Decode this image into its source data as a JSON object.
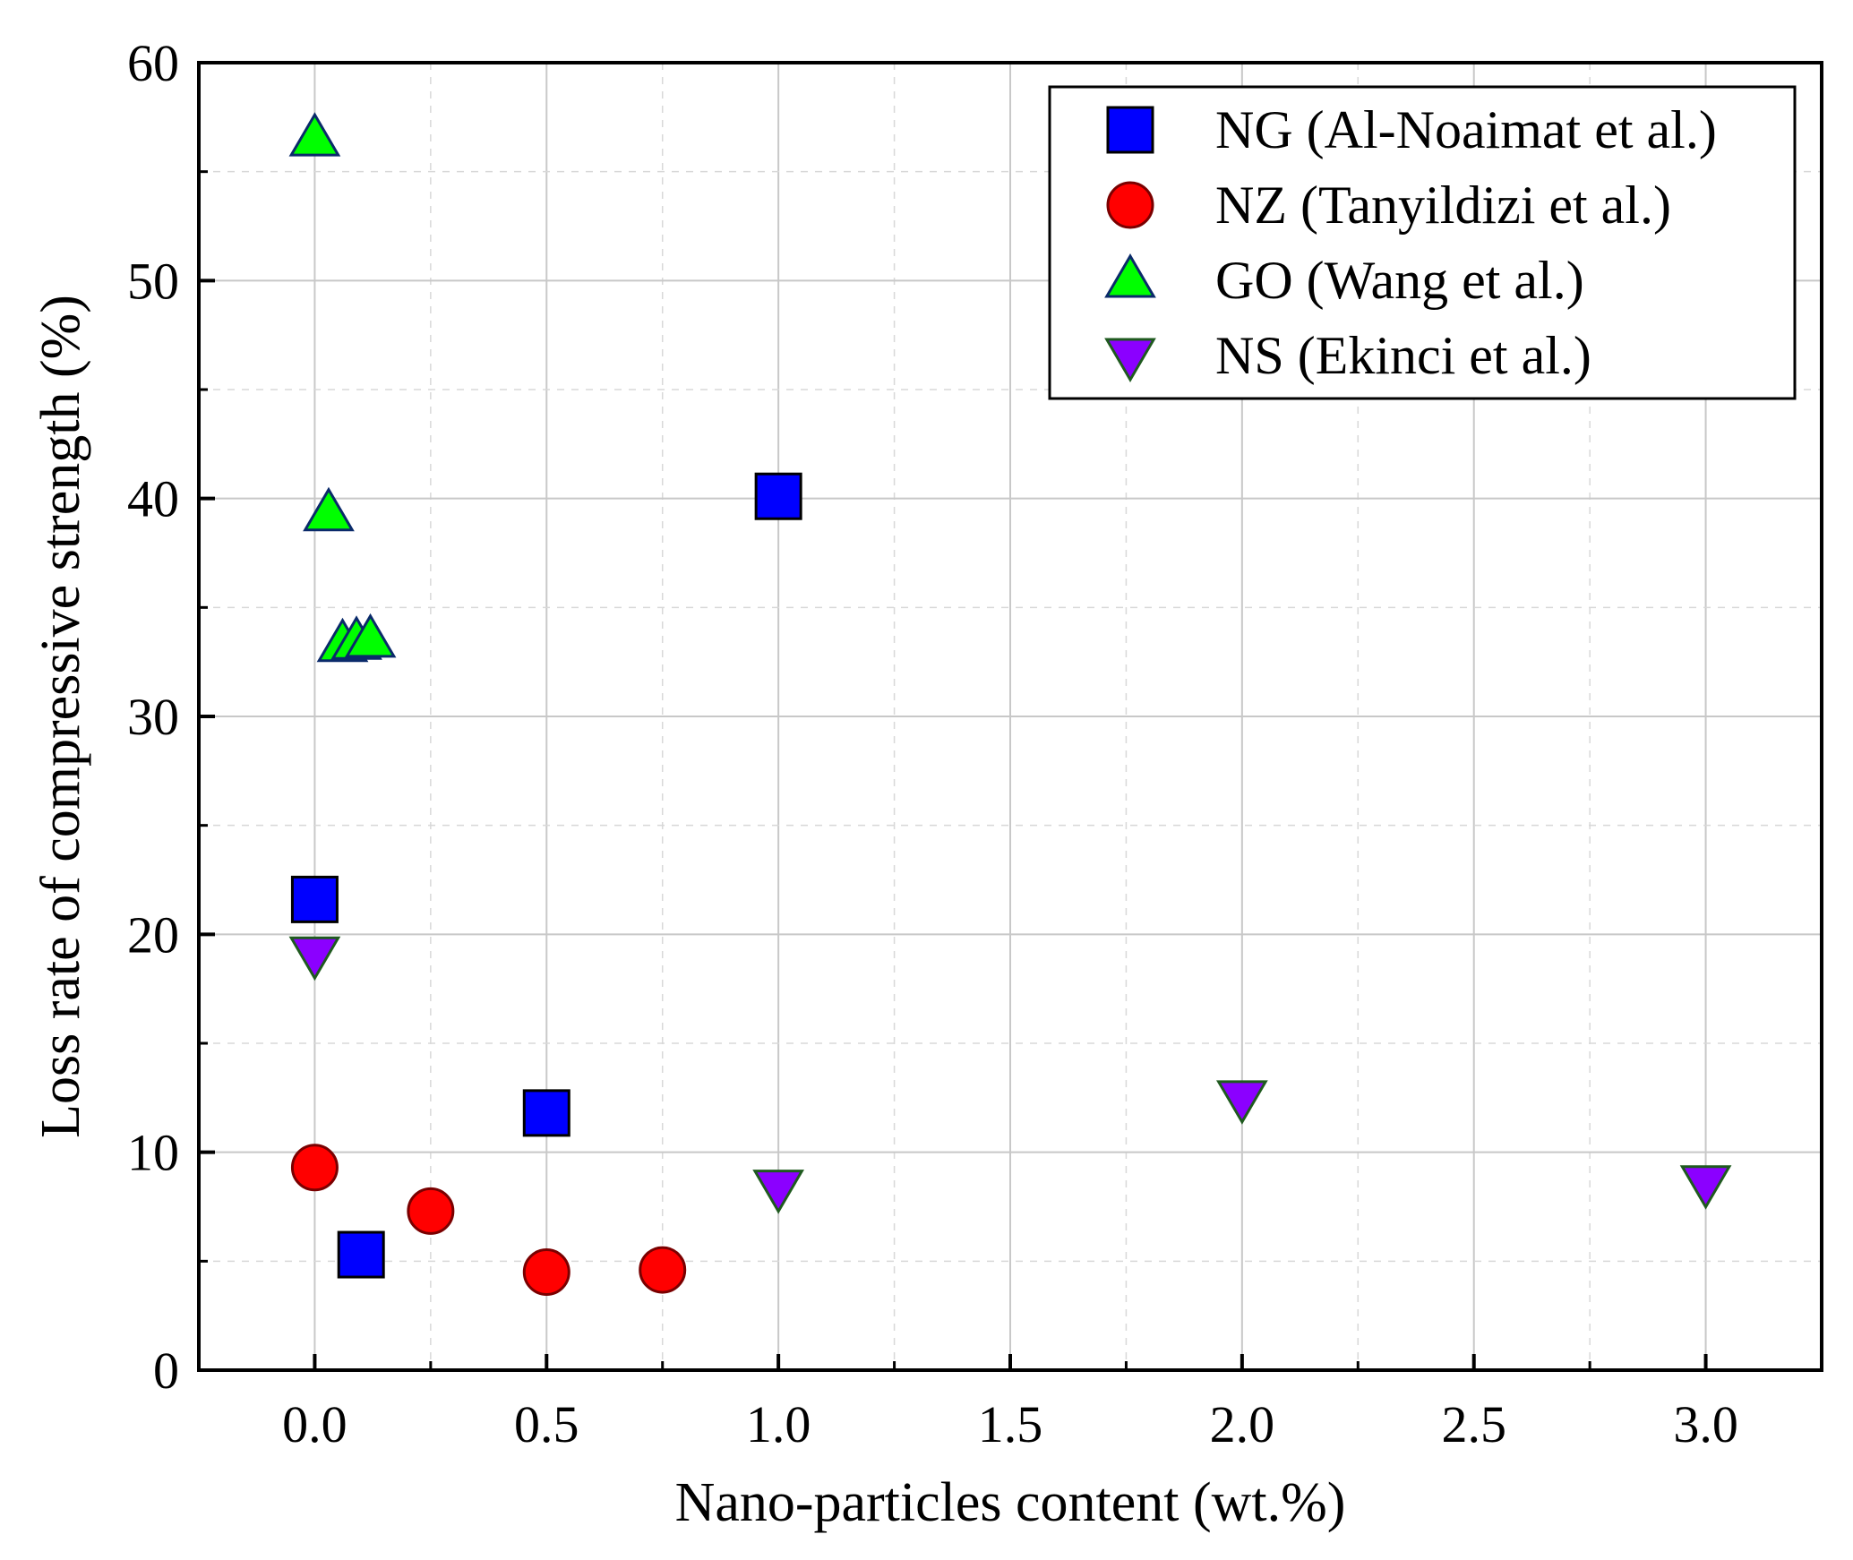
{
  "chart_data": {
    "type": "scatter",
    "title": "",
    "xlabel": "Nano-particles content (wt.%)",
    "ylabel": "Loss rate of compressive strength (%)",
    "xlim": [
      -0.25,
      3.25
    ],
    "ylim": [
      0,
      60
    ],
    "xticks": [
      "0.0",
      "0.5",
      "1.0",
      "1.5",
      "2.0",
      "2.5",
      "3.0"
    ],
    "xtick_values": [
      0,
      0.5,
      1.0,
      1.5,
      2.0,
      2.5,
      3.0
    ],
    "yticks": [
      "0",
      "10",
      "20",
      "30",
      "40",
      "50",
      "60"
    ],
    "ytick_values": [
      0,
      10,
      20,
      30,
      40,
      50,
      60
    ],
    "grid": true,
    "legend_position": "top-right",
    "series": [
      {
        "name": "NG (Al-Noaimat et al.)",
        "marker": "square",
        "color": "#0000ff",
        "points": [
          {
            "x": 0.0,
            "y": 21.6
          },
          {
            "x": 0.1,
            "y": 5.3
          },
          {
            "x": 0.5,
            "y": 11.8
          },
          {
            "x": 1.0,
            "y": 40.1
          }
        ]
      },
      {
        "name": "NZ (Tanyildizi et al.)",
        "marker": "circle",
        "color": "#ff0000",
        "points": [
          {
            "x": 0.0,
            "y": 9.3
          },
          {
            "x": 0.25,
            "y": 7.3
          },
          {
            "x": 0.5,
            "y": 4.5
          },
          {
            "x": 0.75,
            "y": 4.6
          }
        ]
      },
      {
        "name": "GO (Wang et al.)",
        "marker": "triangle-up",
        "color": "#00ff00",
        "points": [
          {
            "x": 0.0,
            "y": 56.5
          },
          {
            "x": 0.03,
            "y": 39.3
          },
          {
            "x": 0.06,
            "y": 33.3
          },
          {
            "x": 0.09,
            "y": 33.4
          },
          {
            "x": 0.12,
            "y": 33.5
          }
        ]
      },
      {
        "name": "NS (Ekinci et al.)",
        "marker": "triangle-down",
        "color": "#8b00ff",
        "points": [
          {
            "x": 0.0,
            "y": 19.1
          },
          {
            "x": 1.0,
            "y": 8.4
          },
          {
            "x": 2.0,
            "y": 12.5
          },
          {
            "x": 3.0,
            "y": 8.6
          }
        ]
      }
    ]
  }
}
